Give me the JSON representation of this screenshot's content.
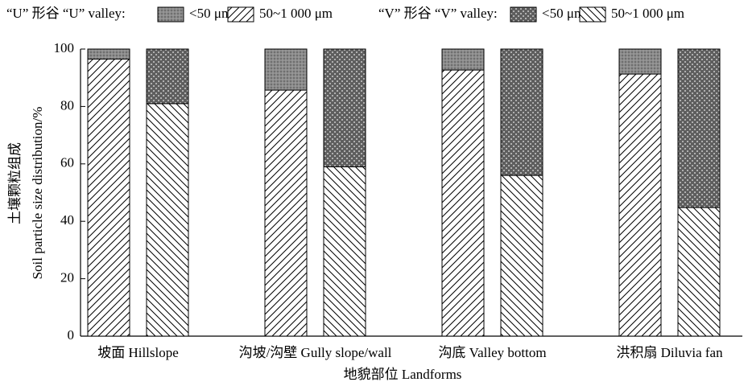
{
  "chart_data": {
    "type": "stacked-bar",
    "ylabel": [
      "土壤颗粒组成",
      "Soil particle size distribution/%"
    ],
    "xlabel": "地貌部位 Landforms",
    "categories": [
      "坡面 Hillslope",
      "沟坡/沟壁 Gully slope/wall",
      "沟底 Valley bottom",
      "洪积扇 Diluvia fan"
    ],
    "groups": [
      {
        "name": "“U” 形谷 “U” valley:",
        "series": [
          {
            "name": "<50 μm",
            "pattern": "dots",
            "values": [
              3.5,
              14.3,
              7.3,
              8.7
            ]
          },
          {
            "name": "50~1 000 μm",
            "pattern": "hatch-forward",
            "values": [
              96.5,
              85.7,
              92.7,
              91.3
            ]
          }
        ]
      },
      {
        "name": "“V” 形谷 “V” valley:",
        "series": [
          {
            "name": "<50 μm",
            "pattern": "checker",
            "values": [
              19,
              41,
              44,
              55.2
            ]
          },
          {
            "name": "50~1 000 μm",
            "pattern": "hatch-back",
            "values": [
              81,
              59,
              56,
              44.8
            ]
          }
        ]
      }
    ],
    "ylim": [
      0,
      100
    ],
    "yticks": [
      0,
      20,
      40,
      60,
      80,
      100
    ]
  }
}
